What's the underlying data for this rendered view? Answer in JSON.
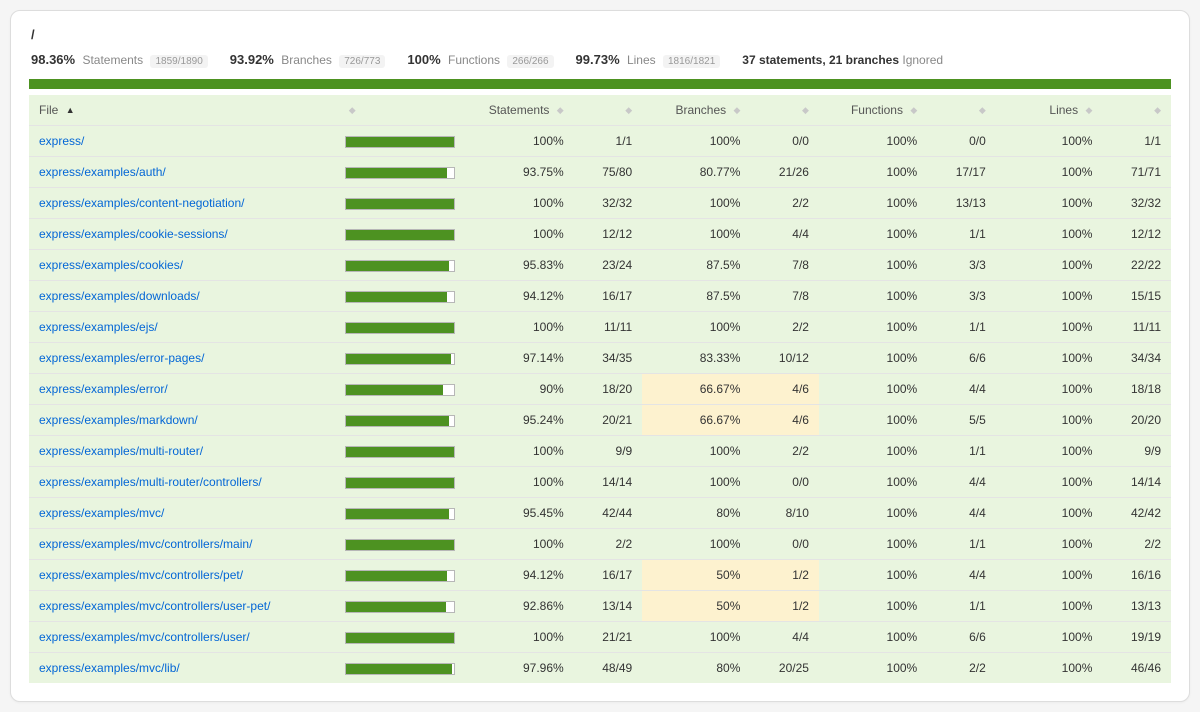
{
  "breadcrumb": "/",
  "summary": {
    "statements": {
      "pct": "98.36%",
      "label": "Statements",
      "frac": "1859/1890"
    },
    "branches": {
      "pct": "93.92%",
      "label": "Branches",
      "frac": "726/773"
    },
    "functions": {
      "pct": "100%",
      "label": "Functions",
      "frac": "266/266"
    },
    "lines": {
      "pct": "99.73%",
      "label": "Lines",
      "frac": "1816/1821"
    },
    "ignored": {
      "strong": "37 statements, 21 branches",
      "label": "Ignored"
    }
  },
  "status_bar_color": "#4d9221",
  "colors": {
    "row_bg": "#e9f5df",
    "warn_bg": "#fdf2cf",
    "bar_fill": "#4d9221",
    "link": "#0366d6"
  },
  "columns": {
    "file": "File",
    "statements": "Statements",
    "branches": "Branches",
    "functions": "Functions",
    "lines": "Lines"
  },
  "sort": {
    "column": "file",
    "dir": "asc"
  },
  "rows": [
    {
      "file": "express/",
      "bar": 100,
      "stm_pct": "100%",
      "stm_frac": "1/1",
      "br_pct": "100%",
      "br_frac": "0/0",
      "fn_pct": "100%",
      "fn_frac": "0/0",
      "ln_pct": "100%",
      "ln_frac": "1/1",
      "br_warn": false
    },
    {
      "file": "express/examples/auth/",
      "bar": 93.75,
      "stm_pct": "93.75%",
      "stm_frac": "75/80",
      "br_pct": "80.77%",
      "br_frac": "21/26",
      "fn_pct": "100%",
      "fn_frac": "17/17",
      "ln_pct": "100%",
      "ln_frac": "71/71",
      "br_warn": false
    },
    {
      "file": "express/examples/content-negotiation/",
      "bar": 100,
      "stm_pct": "100%",
      "stm_frac": "32/32",
      "br_pct": "100%",
      "br_frac": "2/2",
      "fn_pct": "100%",
      "fn_frac": "13/13",
      "ln_pct": "100%",
      "ln_frac": "32/32",
      "br_warn": false
    },
    {
      "file": "express/examples/cookie-sessions/",
      "bar": 100,
      "stm_pct": "100%",
      "stm_frac": "12/12",
      "br_pct": "100%",
      "br_frac": "4/4",
      "fn_pct": "100%",
      "fn_frac": "1/1",
      "ln_pct": "100%",
      "ln_frac": "12/12",
      "br_warn": false
    },
    {
      "file": "express/examples/cookies/",
      "bar": 95.83,
      "stm_pct": "95.83%",
      "stm_frac": "23/24",
      "br_pct": "87.5%",
      "br_frac": "7/8",
      "fn_pct": "100%",
      "fn_frac": "3/3",
      "ln_pct": "100%",
      "ln_frac": "22/22",
      "br_warn": false
    },
    {
      "file": "express/examples/downloads/",
      "bar": 94.12,
      "stm_pct": "94.12%",
      "stm_frac": "16/17",
      "br_pct": "87.5%",
      "br_frac": "7/8",
      "fn_pct": "100%",
      "fn_frac": "3/3",
      "ln_pct": "100%",
      "ln_frac": "15/15",
      "br_warn": false
    },
    {
      "file": "express/examples/ejs/",
      "bar": 100,
      "stm_pct": "100%",
      "stm_frac": "11/11",
      "br_pct": "100%",
      "br_frac": "2/2",
      "fn_pct": "100%",
      "fn_frac": "1/1",
      "ln_pct": "100%",
      "ln_frac": "11/11",
      "br_warn": false
    },
    {
      "file": "express/examples/error-pages/",
      "bar": 97.14,
      "stm_pct": "97.14%",
      "stm_frac": "34/35",
      "br_pct": "83.33%",
      "br_frac": "10/12",
      "fn_pct": "100%",
      "fn_frac": "6/6",
      "ln_pct": "100%",
      "ln_frac": "34/34",
      "br_warn": false
    },
    {
      "file": "express/examples/error/",
      "bar": 90,
      "stm_pct": "90%",
      "stm_frac": "18/20",
      "br_pct": "66.67%",
      "br_frac": "4/6",
      "fn_pct": "100%",
      "fn_frac": "4/4",
      "ln_pct": "100%",
      "ln_frac": "18/18",
      "br_warn": true
    },
    {
      "file": "express/examples/markdown/",
      "bar": 95.24,
      "stm_pct": "95.24%",
      "stm_frac": "20/21",
      "br_pct": "66.67%",
      "br_frac": "4/6",
      "fn_pct": "100%",
      "fn_frac": "5/5",
      "ln_pct": "100%",
      "ln_frac": "20/20",
      "br_warn": true
    },
    {
      "file": "express/examples/multi-router/",
      "bar": 100,
      "stm_pct": "100%",
      "stm_frac": "9/9",
      "br_pct": "100%",
      "br_frac": "2/2",
      "fn_pct": "100%",
      "fn_frac": "1/1",
      "ln_pct": "100%",
      "ln_frac": "9/9",
      "br_warn": false
    },
    {
      "file": "express/examples/multi-router/controllers/",
      "bar": 100,
      "stm_pct": "100%",
      "stm_frac": "14/14",
      "br_pct": "100%",
      "br_frac": "0/0",
      "fn_pct": "100%",
      "fn_frac": "4/4",
      "ln_pct": "100%",
      "ln_frac": "14/14",
      "br_warn": false
    },
    {
      "file": "express/examples/mvc/",
      "bar": 95.45,
      "stm_pct": "95.45%",
      "stm_frac": "42/44",
      "br_pct": "80%",
      "br_frac": "8/10",
      "fn_pct": "100%",
      "fn_frac": "4/4",
      "ln_pct": "100%",
      "ln_frac": "42/42",
      "br_warn": false
    },
    {
      "file": "express/examples/mvc/controllers/main/",
      "bar": 100,
      "stm_pct": "100%",
      "stm_frac": "2/2",
      "br_pct": "100%",
      "br_frac": "0/0",
      "fn_pct": "100%",
      "fn_frac": "1/1",
      "ln_pct": "100%",
      "ln_frac": "2/2",
      "br_warn": false
    },
    {
      "file": "express/examples/mvc/controllers/pet/",
      "bar": 94.12,
      "stm_pct": "94.12%",
      "stm_frac": "16/17",
      "br_pct": "50%",
      "br_frac": "1/2",
      "fn_pct": "100%",
      "fn_frac": "4/4",
      "ln_pct": "100%",
      "ln_frac": "16/16",
      "br_warn": true
    },
    {
      "file": "express/examples/mvc/controllers/user-pet/",
      "bar": 92.86,
      "stm_pct": "92.86%",
      "stm_frac": "13/14",
      "br_pct": "50%",
      "br_frac": "1/2",
      "fn_pct": "100%",
      "fn_frac": "1/1",
      "ln_pct": "100%",
      "ln_frac": "13/13",
      "br_warn": true
    },
    {
      "file": "express/examples/mvc/controllers/user/",
      "bar": 100,
      "stm_pct": "100%",
      "stm_frac": "21/21",
      "br_pct": "100%",
      "br_frac": "4/4",
      "fn_pct": "100%",
      "fn_frac": "6/6",
      "ln_pct": "100%",
      "ln_frac": "19/19",
      "br_warn": false
    },
    {
      "file": "express/examples/mvc/lib/",
      "bar": 97.96,
      "stm_pct": "97.96%",
      "stm_frac": "48/49",
      "br_pct": "80%",
      "br_frac": "20/25",
      "fn_pct": "100%",
      "fn_frac": "2/2",
      "ln_pct": "100%",
      "ln_frac": "46/46",
      "br_warn": false
    }
  ]
}
